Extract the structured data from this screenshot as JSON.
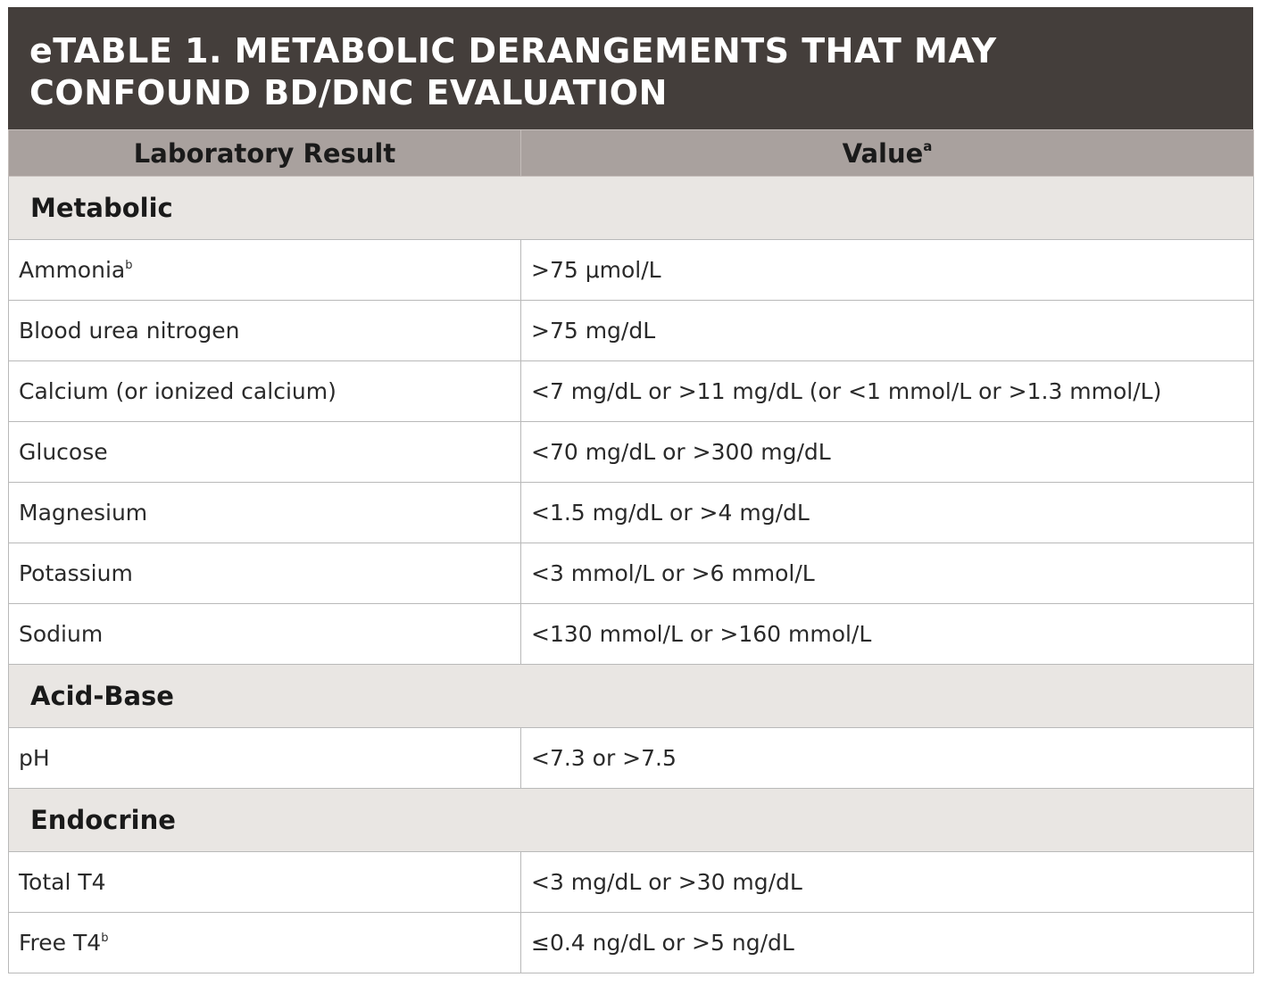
{
  "title": {
    "line1": "eTABLE 1. METABOLIC DERANGEMENTS THAT MAY",
    "line2": "CONFOUND BD/DNC EVALUATION"
  },
  "header": {
    "col1": "Laboratory Result",
    "col2": "Value",
    "col2_sup": "a"
  },
  "sections": [
    {
      "name": "Metabolic",
      "rows": [
        {
          "label": "Ammonia",
          "sup": "b",
          "value": ">75 μmol/L"
        },
        {
          "label": "Blood urea nitrogen",
          "value": ">75 mg/dL"
        },
        {
          "label": "Calcium (or ionized calcium)",
          "value": "<7 mg/dL or >11 mg/dL (or <1 mmol/L or >1.3 mmol/L)"
        },
        {
          "label": "Glucose",
          "value": "<70 mg/dL or >300 mg/dL"
        },
        {
          "label": "Magnesium",
          "value": "<1.5 mg/dL or >4 mg/dL"
        },
        {
          "label": "Potassium",
          "value": "<3 mmol/L or >6 mmol/L"
        },
        {
          "label": "Sodium",
          "value": "<130 mmol/L or >160 mmol/L"
        }
      ]
    },
    {
      "name": "Acid-Base",
      "rows": [
        {
          "label": "pH",
          "value": "<7.3 or >7.5"
        }
      ]
    },
    {
      "name": "Endocrine",
      "rows": [
        {
          "label": "Total T4",
          "value": "<3 mg/dL or >30 mg/dL"
        },
        {
          "label": "Free T4",
          "sup": "b",
          "value": "≤0.4 ng/dL or >5 ng/dL"
        }
      ]
    }
  ]
}
